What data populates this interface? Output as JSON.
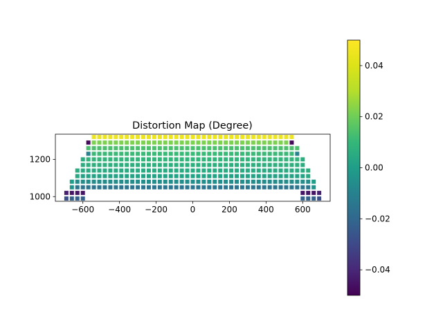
{
  "chart_data": {
    "type": "heatmap",
    "title": "Distortion Map (Degree)",
    "xlabel": "",
    "ylabel": "",
    "xlim": [
      -750,
      750
    ],
    "ylim": [
      975,
      1335
    ],
    "x_ticks": [
      -600,
      -400,
      -200,
      0,
      200,
      400,
      600
    ],
    "x_tick_labels": [
      "−600",
      "−400",
      "−200",
      "0",
      "200",
      "400",
      "600"
    ],
    "y_ticks": [
      1000,
      1200
    ],
    "y_tick_labels": [
      "1000",
      "1200"
    ],
    "grid": false,
    "marker": "square",
    "colormap": "viridis",
    "colorbar": {
      "vmin": -0.05,
      "vmax": 0.05,
      "ticks": [
        -0.04,
        -0.02,
        0.0,
        0.02,
        0.04
      ],
      "tick_labels": [
        "−0.04",
        "−0.02",
        "0.00",
        "0.02",
        "0.04"
      ]
    },
    "grid_spacing": {
      "x": 30,
      "y": 30
    },
    "rows": [
      {
        "y": 990,
        "x_min": -690,
        "x_max": 690,
        "value": -0.022,
        "edge_value": -0.028,
        "exclude_x_min": -600,
        "exclude_x_max": 600
      },
      {
        "y": 1020,
        "x_min": -690,
        "x_max": 690,
        "value": -0.045,
        "edge_value": -0.042,
        "exclude_x_min": -600,
        "exclude_x_max": 600
      },
      {
        "y": 1050,
        "x_min": -660,
        "x_max": 660,
        "value": -0.015,
        "edge_value": -0.004
      },
      {
        "y": 1080,
        "x_min": -660,
        "x_max": 660,
        "value": -0.006,
        "edge_value": 0.0
      },
      {
        "y": 1110,
        "x_min": -630,
        "x_max": 630,
        "value": 0.002,
        "edge_value": 0.004
      },
      {
        "y": 1140,
        "x_min": -630,
        "x_max": 630,
        "value": 0.005,
        "edge_value": 0.006
      },
      {
        "y": 1170,
        "x_min": -600,
        "x_max": 600,
        "value": 0.007,
        "edge_value": 0.006
      },
      {
        "y": 1200,
        "x_min": -600,
        "x_max": 600,
        "value": 0.009,
        "edge_value": 0.006
      },
      {
        "y": 1230,
        "x_min": -570,
        "x_max": 570,
        "value": 0.011,
        "edge_value": -0.01
      },
      {
        "y": 1260,
        "x_min": -570,
        "x_max": 570,
        "value": 0.014,
        "edge_value": 0.014
      },
      {
        "y": 1290,
        "x_min": -570,
        "x_max": 540,
        "value": 0.022,
        "edge_value": -0.048
      },
      {
        "y": 1320,
        "x_min": -540,
        "x_max": 540,
        "value": 0.045,
        "edge_value": 0.045
      }
    ]
  }
}
